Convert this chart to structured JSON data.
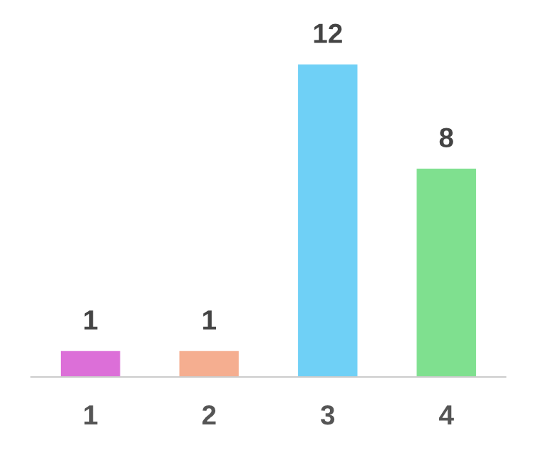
{
  "chart_data": {
    "type": "bar",
    "categories": [
      "1",
      "2",
      "3",
      "4"
    ],
    "values": [
      1,
      1,
      12,
      8
    ],
    "colors": [
      "#dc6fd8",
      "#f5ae90",
      "#6fd0f6",
      "#7fe08f"
    ],
    "data_labels": true,
    "tick_labels": "x"
  }
}
